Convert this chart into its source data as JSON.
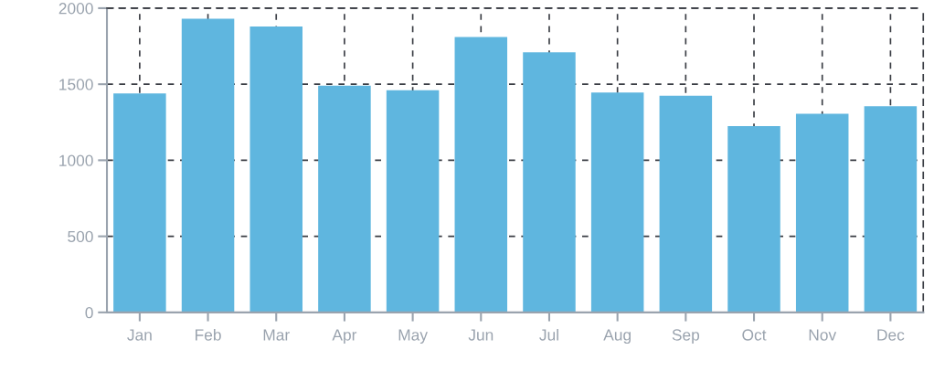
{
  "chart_data": {
    "type": "bar",
    "categories": [
      "Jan",
      "Feb",
      "Mar",
      "Apr",
      "May",
      "Jun",
      "Jul",
      "Aug",
      "Sep",
      "Oct",
      "Nov",
      "Dec"
    ],
    "values": [
      1440,
      1930,
      1880,
      1490,
      1460,
      1810,
      1710,
      1445,
      1425,
      1225,
      1305,
      1355
    ],
    "color": "#5fb6df",
    "ylim": [
      0,
      2000
    ],
    "yticks": [
      0,
      500,
      1000,
      1500,
      2000
    ],
    "grid": true,
    "legend": false
  }
}
